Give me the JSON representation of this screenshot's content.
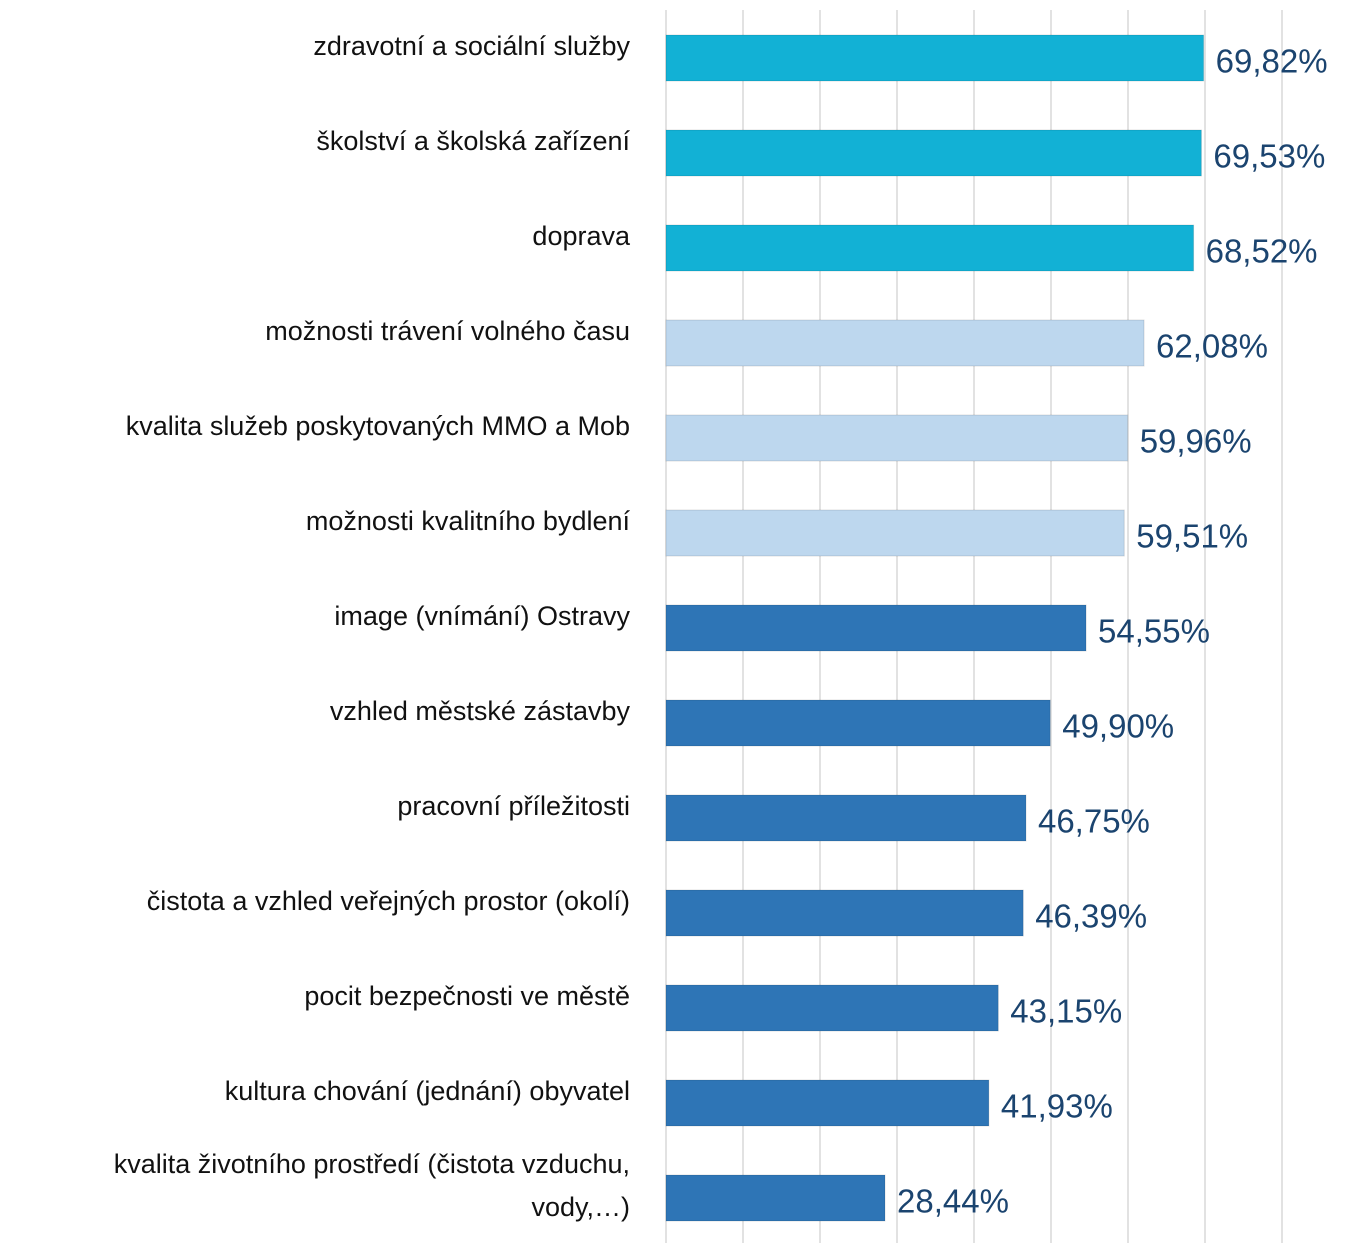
{
  "chart_data": {
    "type": "barh",
    "categories": [
      "zdravotní a sociální služby",
      "školství a školská zařízení",
      "doprava",
      "možnosti trávení volného času",
      "kvalita služeb poskytovaných MMO a Mob",
      "možnosti kvalitního bydlení",
      "image (vnímání) Ostravy",
      "vzhled městské zástavby",
      "pracovní příležitosti",
      "čistota a vzhled veřejných prostor (okolí)",
      "pocit bezpečnosti ve městě",
      "kultura chování (jednání) obyvatel",
      "kvalita životního prostředí (čistota vzduchu, vody,…)"
    ],
    "values": [
      69.82,
      69.53,
      68.52,
      62.08,
      59.96,
      59.51,
      54.55,
      49.9,
      46.75,
      46.39,
      43.15,
      41.93,
      28.44
    ],
    "value_labels": [
      "69,82%",
      "69,53%",
      "68,52%",
      "62,08%",
      "59,96%",
      "59,51%",
      "54,55%",
      "49,90%",
      "46,75%",
      "46,39%",
      "43,15%",
      "41,93%",
      "28,44%"
    ],
    "colors": [
      "#12b1d5",
      "#12b1d5",
      "#12b1d5",
      "#bdd7ee",
      "#bdd7ee",
      "#bdd7ee",
      "#2e75b6",
      "#2e75b6",
      "#2e75b6",
      "#2e75b6",
      "#2e75b6",
      "#2e75b6",
      "#2e75b6"
    ],
    "xlim": [
      0,
      80
    ],
    "xticks": [
      0,
      10,
      20,
      30,
      40,
      50,
      60,
      70,
      80
    ],
    "grid": true
  }
}
